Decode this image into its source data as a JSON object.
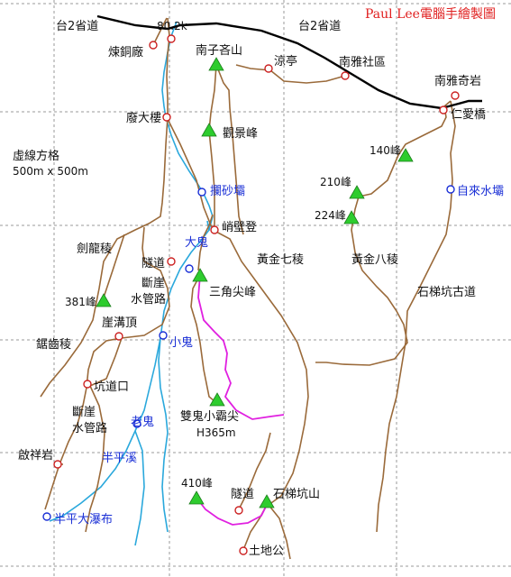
{
  "credit": "Paul Lee電腦手繪製圖",
  "legend": {
    "title": "虛線方格",
    "size": "500m x 500m"
  },
  "colors": {
    "trail": "#9a6a3a",
    "highway": "#000000",
    "stream": "#2aa8dc",
    "route": "#e020e0",
    "peak": "#2ecc2e",
    "point_red": "#cc2222",
    "point_blue": "#1a2fd6"
  },
  "labels": {
    "road_left": "台2省道",
    "road_right": "台2省道",
    "km": "80.2k",
    "lianfenchang": "煉銅廠",
    "fei_dalou": "廢大樓",
    "nanzijinshan": "南子吝山",
    "liangting": "涼亭",
    "nanyashequ": "南雅社區",
    "nanyaqiyan": "南雅奇岩",
    "renaiqiao": "仁愛橋",
    "guanjingfeng": "觀景峰",
    "feng140": "140峰",
    "feng210": "210峰",
    "feng224": "224峰",
    "zilaishuiba": "自來水壩",
    "lanshaba": "攔砂壩",
    "xunbideng": "峭壁登",
    "jianlongleng": "劍龍稜",
    "dagui": "大鬼",
    "suidao1": "隧道",
    "huangjinqileng": "黃金七稜",
    "huangjinbaleng": "黃金八稜",
    "duanya1": "斷崖",
    "shuiguanlu1": "水管路",
    "sanjiaojianfeng": "三角尖峰",
    "feng381": "381峰",
    "yagouding": "崖溝頂",
    "xiaogui": "小鬼",
    "juchileng": "鋸齒稜",
    "kengdaokou": "坑道口",
    "duanya2": "斷崖",
    "shuiguanlu2": "水管路",
    "shiti_gudao": "石梯坑古道",
    "laogui": "老鬼",
    "shuanggui": "雙鬼小霸尖",
    "h365": "H365m",
    "qixiangyan": "啟祥岩",
    "banpingxi": "半平溪",
    "feng410": "410峰",
    "suidao2": "隧道",
    "shitikengshan": "石梯坑山",
    "banpingpubu": "半平大瀑布",
    "tudigong": "土地公"
  }
}
